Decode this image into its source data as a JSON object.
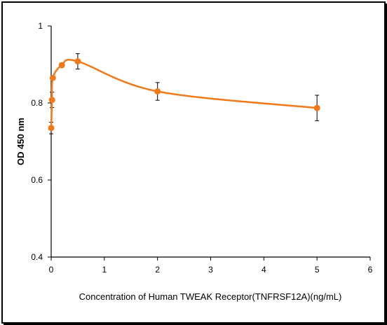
{
  "chart_data": {
    "type": "line",
    "title": "",
    "xlabel": "Concentration of Human TWEAK Receptor(TNFRSF12A)(ng/mL)",
    "ylabel": "OD 450 nm",
    "xlim": [
      0,
      6
    ],
    "ylim": [
      0.4,
      1.0
    ],
    "x_ticks": [
      "0",
      "1",
      "2",
      "3",
      "4",
      "5",
      "6"
    ],
    "y_ticks": [
      "0.4",
      "0.6",
      "0.8",
      "1"
    ],
    "grid": false,
    "legend": "none",
    "series": [
      {
        "color": "#f07a1a",
        "x": [
          0,
          0.016,
          0.031,
          0.2,
          0.5,
          2,
          5
        ],
        "y": [
          0.735,
          0.808,
          0.865,
          0.898,
          0.908,
          0.83,
          0.787
        ],
        "error": [
          0.015,
          0.02,
          0.0,
          0.0,
          0.02,
          0.023,
          0.033
        ]
      }
    ]
  }
}
